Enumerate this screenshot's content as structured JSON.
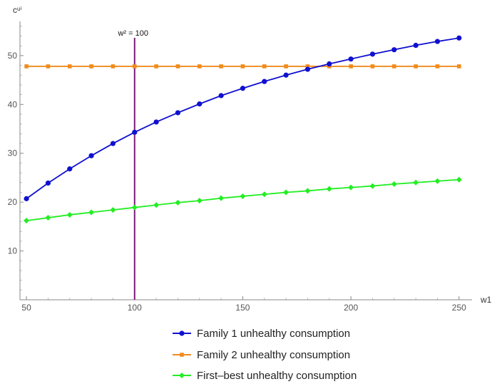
{
  "chart_data": {
    "type": "line",
    "title": "",
    "xlabel": "w1",
    "ylabel": "cᵘⁱ",
    "xlim": [
      47,
      256
    ],
    "ylim": [
      0,
      57
    ],
    "x_ticks": [
      50,
      100,
      150,
      200,
      250
    ],
    "y_ticks": [
      10,
      20,
      30,
      40,
      50
    ],
    "x_tick_labels": [
      "50",
      "100",
      "150",
      "200",
      "250"
    ],
    "y_tick_labels": [
      "10",
      "20",
      "30",
      "40",
      "50"
    ],
    "grid": false,
    "legend_position": "bottom",
    "x": [
      50,
      60,
      70,
      80,
      90,
      100,
      110,
      120,
      130,
      140,
      150,
      160,
      170,
      180,
      190,
      200,
      210,
      220,
      230,
      240,
      250
    ],
    "series": [
      {
        "name": "Family 1 unhealthy consumption",
        "color": "#1010d0",
        "marker": "circle",
        "values": [
          20.7,
          23.9,
          26.8,
          29.5,
          32.0,
          34.3,
          36.4,
          38.3,
          40.1,
          41.8,
          43.3,
          44.7,
          46.0,
          47.2,
          48.3,
          49.3,
          50.3,
          51.2,
          52.1,
          52.9,
          53.6
        ]
      },
      {
        "name": "Family 2 unhealthy consumption",
        "color": "#f08c1c",
        "marker": "square",
        "values": [
          47.8,
          47.8,
          47.8,
          47.8,
          47.8,
          47.8,
          47.8,
          47.8,
          47.8,
          47.8,
          47.8,
          47.8,
          47.8,
          47.8,
          47.8,
          47.8,
          47.8,
          47.8,
          47.8,
          47.8,
          47.8
        ]
      },
      {
        "name": "First–best unhealthy consumption",
        "color": "#22ee22",
        "marker": "diamond",
        "values": [
          16.2,
          16.8,
          17.4,
          17.9,
          18.4,
          18.9,
          19.4,
          19.9,
          20.3,
          20.8,
          21.2,
          21.6,
          22.0,
          22.3,
          22.7,
          23.0,
          23.3,
          23.7,
          24.0,
          24.3,
          24.6
        ]
      }
    ],
    "annotations": [
      {
        "type": "vline",
        "x": 100,
        "color": "#7a1a7a",
        "label": "w² = 100"
      }
    ]
  }
}
